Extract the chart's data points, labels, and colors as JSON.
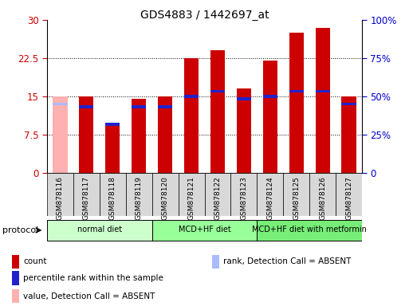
{
  "title": "GDS4883 / 1442697_at",
  "samples": [
    "GSM878116",
    "GSM878117",
    "GSM878118",
    "GSM878119",
    "GSM878120",
    "GSM878121",
    "GSM878122",
    "GSM878123",
    "GSM878124",
    "GSM878125",
    "GSM878126",
    "GSM878127"
  ],
  "count_values": [
    15.0,
    15.0,
    9.5,
    14.5,
    15.0,
    22.5,
    24.0,
    16.5,
    22.0,
    27.5,
    28.5,
    15.0
  ],
  "rank_values": [
    13.5,
    13.0,
    9.5,
    13.0,
    13.0,
    15.0,
    16.0,
    14.5,
    15.0,
    16.0,
    16.0,
    13.5
  ],
  "absent_flags": [
    true,
    false,
    false,
    false,
    false,
    false,
    false,
    false,
    false,
    false,
    false,
    false
  ],
  "rank_absent_flags": [
    true,
    false,
    false,
    false,
    false,
    false,
    false,
    false,
    false,
    false,
    false,
    false
  ],
  "ylim_left": [
    0,
    30
  ],
  "ylim_right": [
    0,
    100
  ],
  "yticks_left": [
    0,
    7.5,
    15,
    22.5,
    30
  ],
  "yticks_right": [
    0,
    25,
    50,
    75,
    100
  ],
  "ytick_labels_left": [
    "0",
    "7.5",
    "15",
    "22.5",
    "30"
  ],
  "ytick_labels_right": [
    "0",
    "25%",
    "50%",
    "75%",
    "100%"
  ],
  "bar_color_normal": "#cc0000",
  "bar_color_absent": "#ffb0b0",
  "rank_color_normal": "#2222cc",
  "rank_color_absent": "#aabbff",
  "protocol_groups": [
    {
      "label": "normal diet",
      "start": 0,
      "end": 3,
      "color": "#ccffcc"
    },
    {
      "label": "MCD+HF diet",
      "start": 4,
      "end": 7,
      "color": "#99ff99"
    },
    {
      "label": "MCD+HF diet with metformin",
      "start": 8,
      "end": 11,
      "color": "#77ee77"
    }
  ],
  "legend_items": [
    {
      "label": "count",
      "color": "#cc0000"
    },
    {
      "label": "percentile rank within the sample",
      "color": "#2222cc"
    },
    {
      "label": "value, Detection Call = ABSENT",
      "color": "#ffb0b0"
    },
    {
      "label": "rank, Detection Call = ABSENT",
      "color": "#aabbff"
    }
  ],
  "background_color": "#ffffff",
  "bar_width": 0.55,
  "tick_label_color_left": "#cc0000",
  "tick_label_color_right": "#0000cc"
}
